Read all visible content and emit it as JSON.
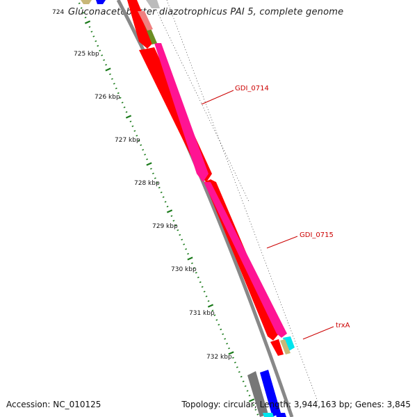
{
  "title": "Gluconacetobacter diazotrophicus PAI 5, complete genome",
  "footer": {
    "accession": "Accession: NC_010125",
    "summary": "Topology: circular; Length: 3,944,163 bp; Genes: 3,845"
  },
  "scale": {
    "ticks": [
      "724",
      "725 kbp",
      "726 kbp",
      "727 kbp",
      "728 kbp",
      "729 kbp",
      "730 kbp",
      "731 kbp",
      "732 kbp"
    ],
    "tick_color": "#1a7a1a"
  },
  "genes": [
    {
      "label": "GDI_0714",
      "color": "#ff1493"
    },
    {
      "label": "GDI_0715",
      "color": "#ff1493"
    },
    {
      "label": "trxA",
      "color": "#00e5ee"
    }
  ],
  "colors": {
    "backbone": "#888888",
    "forward_cds": "#ff0000",
    "reverse_cds": "#ff1493",
    "label_line": "#cc0000",
    "tan_gene": "#c8b878",
    "blue_gene": "#0000ff",
    "olive_gene": "#6b8e23",
    "salmon_gene": "#f08080",
    "gray_gene": "#777777",
    "cyan_gene": "#00e5ee"
  }
}
